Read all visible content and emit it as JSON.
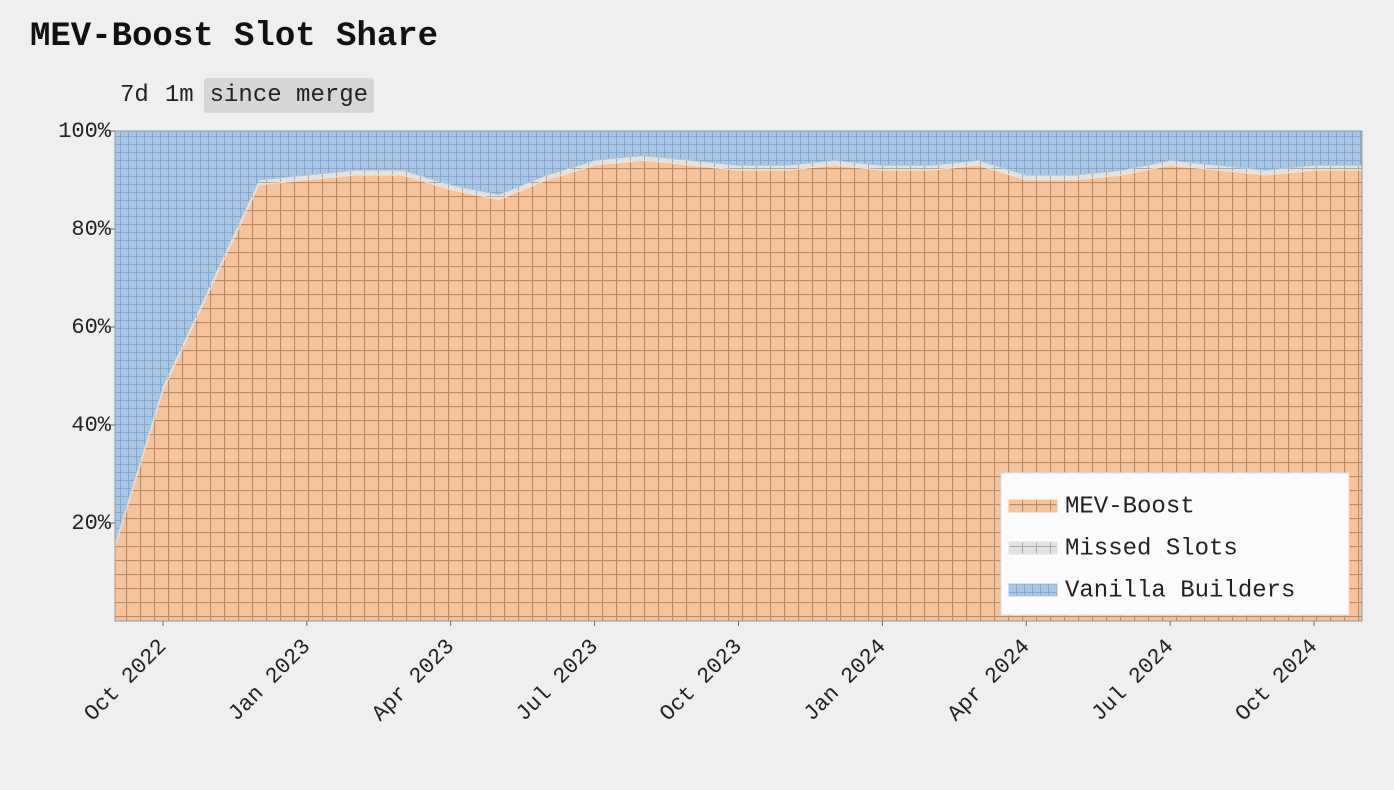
{
  "chart_data": {
    "type": "stacked_area",
    "title": "MEV-Boost Slot Share",
    "range_buttons": [
      "7d",
      "1m",
      "since merge"
    ],
    "active_range": 2,
    "x": [
      "2022-09",
      "2022-10",
      "2022-11",
      "2022-12",
      "2023-01",
      "2023-02",
      "2023-03",
      "2023-04",
      "2023-05",
      "2023-06",
      "2023-07",
      "2023-08",
      "2023-09",
      "2023-10",
      "2023-11",
      "2023-12",
      "2024-01",
      "2024-02",
      "2024-03",
      "2024-04",
      "2024-05",
      "2024-06",
      "2024-07",
      "2024-08",
      "2024-09",
      "2024-10",
      "2024-11"
    ],
    "series": [
      {
        "name": "MEV-Boost",
        "color": "#f5c49c",
        "values": [
          15,
          47,
          68,
          89,
          90,
          91,
          91,
          88,
          86,
          90,
          93,
          94,
          93,
          92,
          92,
          93,
          92,
          92,
          93,
          90,
          90,
          91,
          93,
          92,
          91,
          92,
          92
        ]
      },
      {
        "name": "Missed Slots",
        "color": "#e2e2e2",
        "values": [
          1,
          1,
          1,
          1,
          1,
          1,
          1,
          1,
          1,
          1,
          1,
          1,
          1,
          1,
          1,
          1,
          1,
          1,
          1,
          1,
          1,
          1,
          1,
          1,
          1,
          1,
          1
        ]
      },
      {
        "name": "Vanilla Builders",
        "color": "#a8c6e6",
        "values": [
          84,
          52,
          31,
          10,
          9,
          8,
          8,
          11,
          13,
          9,
          6,
          5,
          6,
          7,
          7,
          6,
          7,
          7,
          6,
          9,
          9,
          8,
          6,
          7,
          8,
          7,
          7
        ]
      }
    ],
    "xlim": [
      "2022-09",
      "2024-11"
    ],
    "xticks": [
      {
        "value": "2022-10",
        "label": "Oct 2022"
      },
      {
        "value": "2023-01",
        "label": "Jan 2023"
      },
      {
        "value": "2023-04",
        "label": "Apr 2023"
      },
      {
        "value": "2023-07",
        "label": "Jul 2023"
      },
      {
        "value": "2023-10",
        "label": "Oct 2023"
      },
      {
        "value": "2024-01",
        "label": "Jan 2024"
      },
      {
        "value": "2024-04",
        "label": "Apr 2024"
      },
      {
        "value": "2024-07",
        "label": "Jul 2024"
      },
      {
        "value": "2024-10",
        "label": "Oct 2024"
      }
    ],
    "ylim": [
      0,
      100
    ],
    "yticks": [
      {
        "value": 20,
        "label": "20%"
      },
      {
        "value": 40,
        "label": "40%"
      },
      {
        "value": 60,
        "label": "60%"
      },
      {
        "value": 80,
        "label": "80%"
      },
      {
        "value": 100,
        "label": "100%"
      }
    ],
    "legend": "lower right"
  }
}
